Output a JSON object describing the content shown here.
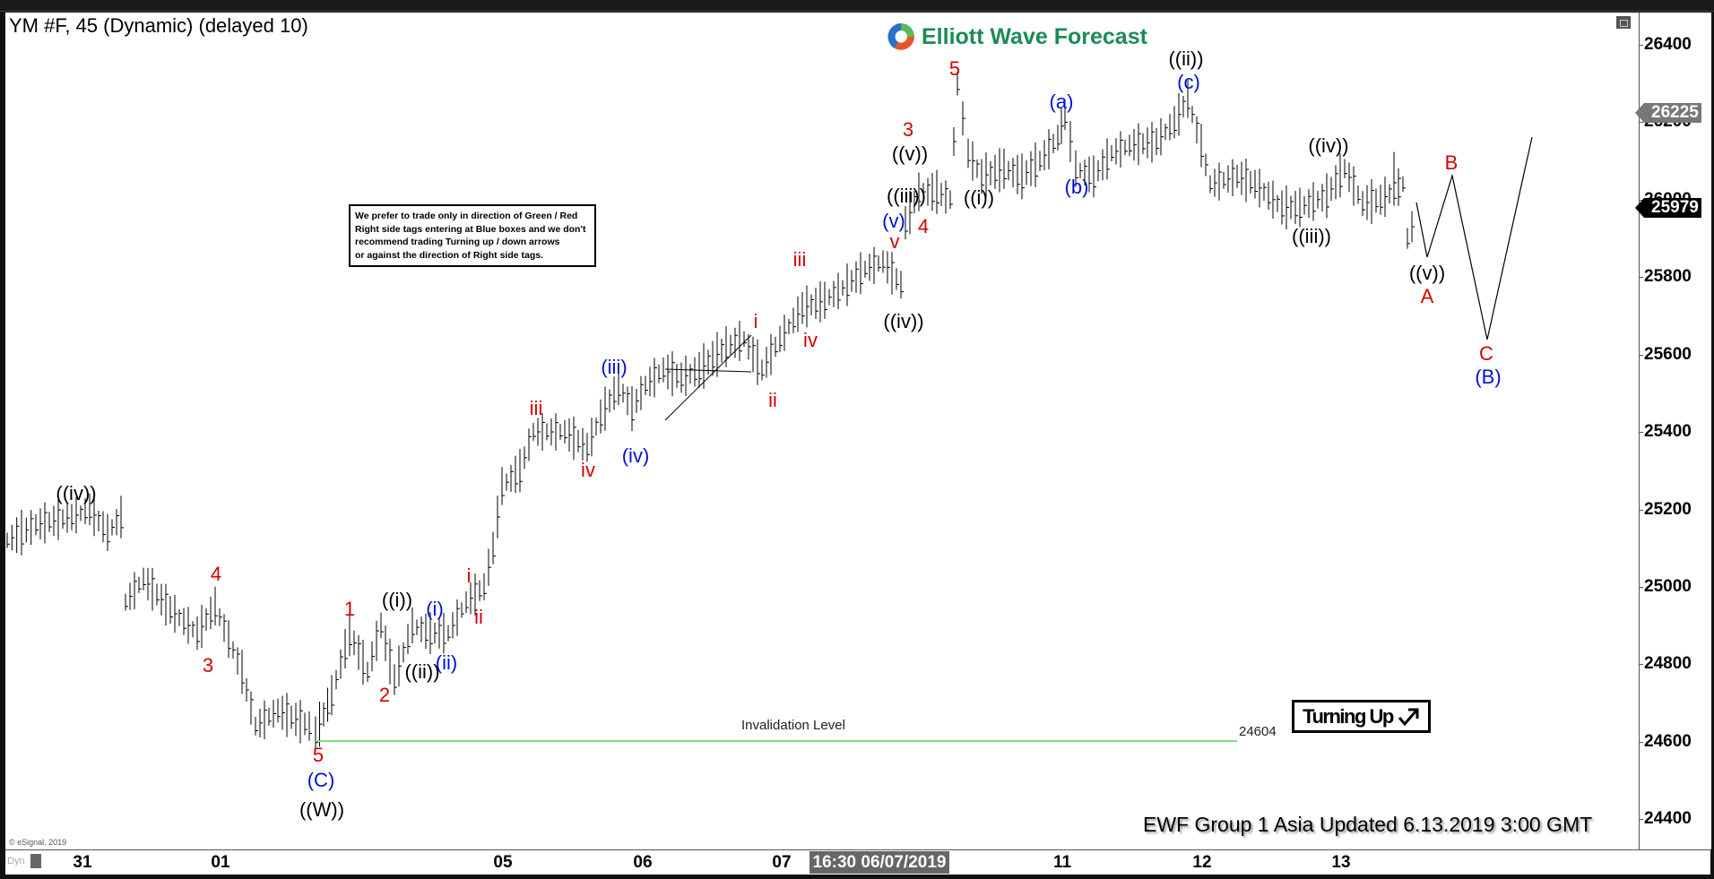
{
  "header": {
    "title": "YM #F, 45 (Dynamic) (delayed 10)",
    "logo_text": "Elliott Wave Forecast"
  },
  "note_box": {
    "lines": [
      "We prefer to trade only in direction of Green / Red",
      "Right side tags entering at Blue boxes and we don't",
      "recommend trading Turning up / down arrows",
      "or against the direction of Right side tags."
    ]
  },
  "badge": {
    "label": "Turning Up",
    "icon": "arrow-up-right-icon"
  },
  "invalidation": {
    "label": "Invalidation Level",
    "value": "24604",
    "color": "#7ddc7d"
  },
  "footer": {
    "updated": "EWF Group 1 Asia Updated 6.13.2019 3:00 GMT",
    "copyright": "© eSignal, 2019",
    "dyn_label": "Dyn"
  },
  "price_tags": {
    "high": {
      "value": "26225",
      "color": "#777777"
    },
    "last": {
      "value": "25979",
      "color": "#000000"
    }
  },
  "colors": {
    "red_label": "#d40000",
    "blue_label": "#0010d0",
    "black_label": "#000000",
    "logo_green": "#1d8a55"
  },
  "chart_data": {
    "type": "bar",
    "title": "YM #F, 45 (Dynamic) (delayed 10)",
    "subtitle": "Elliott Wave Forecast",
    "xlabel": "",
    "ylabel": "",
    "ylim": [
      24350,
      26500
    ],
    "y_ticks": [
      24400,
      24600,
      24800,
      25000,
      25200,
      25400,
      25600,
      25800,
      26000,
      26200,
      26400
    ],
    "x_ticks": [
      "31",
      "01",
      "05",
      "06",
      "07",
      "16:30 06/07/2019",
      "11",
      "12",
      "13"
    ],
    "grid": false,
    "legend": "none",
    "price_markers": {
      "high": 26225,
      "last": 25979
    },
    "invalidation_level": 24604,
    "wave_labels": [
      {
        "label": "((iv))",
        "color": "black",
        "approx_price": 25230
      },
      {
        "label": "4",
        "color": "red",
        "approx_price": 25010
      },
      {
        "label": "3",
        "color": "red",
        "approx_price": 24810
      },
      {
        "label": "5",
        "color": "red",
        "approx_price": 24590
      },
      {
        "label": "(C)",
        "color": "blue",
        "approx_price": 24530
      },
      {
        "label": "((W))",
        "color": "black",
        "approx_price": 24450
      },
      {
        "label": "1",
        "color": "red",
        "approx_price": 24930
      },
      {
        "label": "2",
        "color": "red",
        "approx_price": 24680
      },
      {
        "label": "((i))",
        "color": "black",
        "approx_price": 24960
      },
      {
        "label": "((ii))",
        "color": "black",
        "approx_price": 24810
      },
      {
        "label": "(i)",
        "color": "blue",
        "approx_price": 24920
      },
      {
        "label": "(ii)",
        "color": "blue",
        "approx_price": 24830
      },
      {
        "label": "i",
        "color": "red",
        "approx_price": 25030
      },
      {
        "label": "ii",
        "color": "red",
        "approx_price": 24960
      },
      {
        "label": "iii",
        "color": "red",
        "approx_price": 25460
      },
      {
        "label": "iv",
        "color": "red",
        "approx_price": 25320
      },
      {
        "label": "(iii)",
        "color": "blue",
        "approx_price": 25560
      },
      {
        "label": "(iv)",
        "color": "blue",
        "approx_price": 25340
      },
      {
        "label": "i",
        "color": "red",
        "approx_price": 25680
      },
      {
        "label": "ii",
        "color": "red",
        "approx_price": 25520
      },
      {
        "label": "iii",
        "color": "red",
        "approx_price": 25850
      },
      {
        "label": "iv",
        "color": "red",
        "approx_price": 25640
      },
      {
        "label": "v",
        "color": "red",
        "approx_price": 25880
      },
      {
        "label": "(v)",
        "color": "blue",
        "approx_price": 25930
      },
      {
        "label": "((iii))",
        "color": "black",
        "approx_price": 25990
      },
      {
        "label": "((iv))",
        "color": "black",
        "approx_price": 25730
      },
      {
        "label": "((v))",
        "color": "black",
        "approx_price": 26110
      },
      {
        "label": "3",
        "color": "red",
        "approx_price": 26170
      },
      {
        "label": "4",
        "color": "red",
        "approx_price": 25940
      },
      {
        "label": "5",
        "color": "red",
        "approx_price": 26330
      },
      {
        "label": "((i))",
        "color": "black",
        "approx_price": 25990
      },
      {
        "label": "(a)",
        "color": "blue",
        "approx_price": 26240
      },
      {
        "label": "(b)",
        "color": "blue",
        "approx_price": 26020
      },
      {
        "label": "(c)",
        "color": "blue",
        "approx_price": 26300
      },
      {
        "label": "((ii))",
        "color": "black",
        "approx_price": 26370
      },
      {
        "label": "((iii))",
        "color": "black",
        "approx_price": 25910
      },
      {
        "label": "((iv))",
        "color": "black",
        "approx_price": 26130
      },
      {
        "label": "((v))",
        "color": "black",
        "approx_price": 25800
      },
      {
        "label": "A",
        "color": "red",
        "approx_price": 25750
      },
      {
        "label": "B",
        "color": "red",
        "approx_price": 26090
      },
      {
        "label": "C",
        "color": "red",
        "approx_price": 25600
      },
      {
        "label": "(B)",
        "color": "blue",
        "approx_price": 25540
      }
    ],
    "projection_path": [
      {
        "point": "start",
        "price": 25990
      },
      {
        "point": "A",
        "price": 25860
      },
      {
        "point": "B",
        "price": 26060
      },
      {
        "point": "C",
        "price": 25640
      },
      {
        "point": "end",
        "price": 26160
      }
    ]
  }
}
